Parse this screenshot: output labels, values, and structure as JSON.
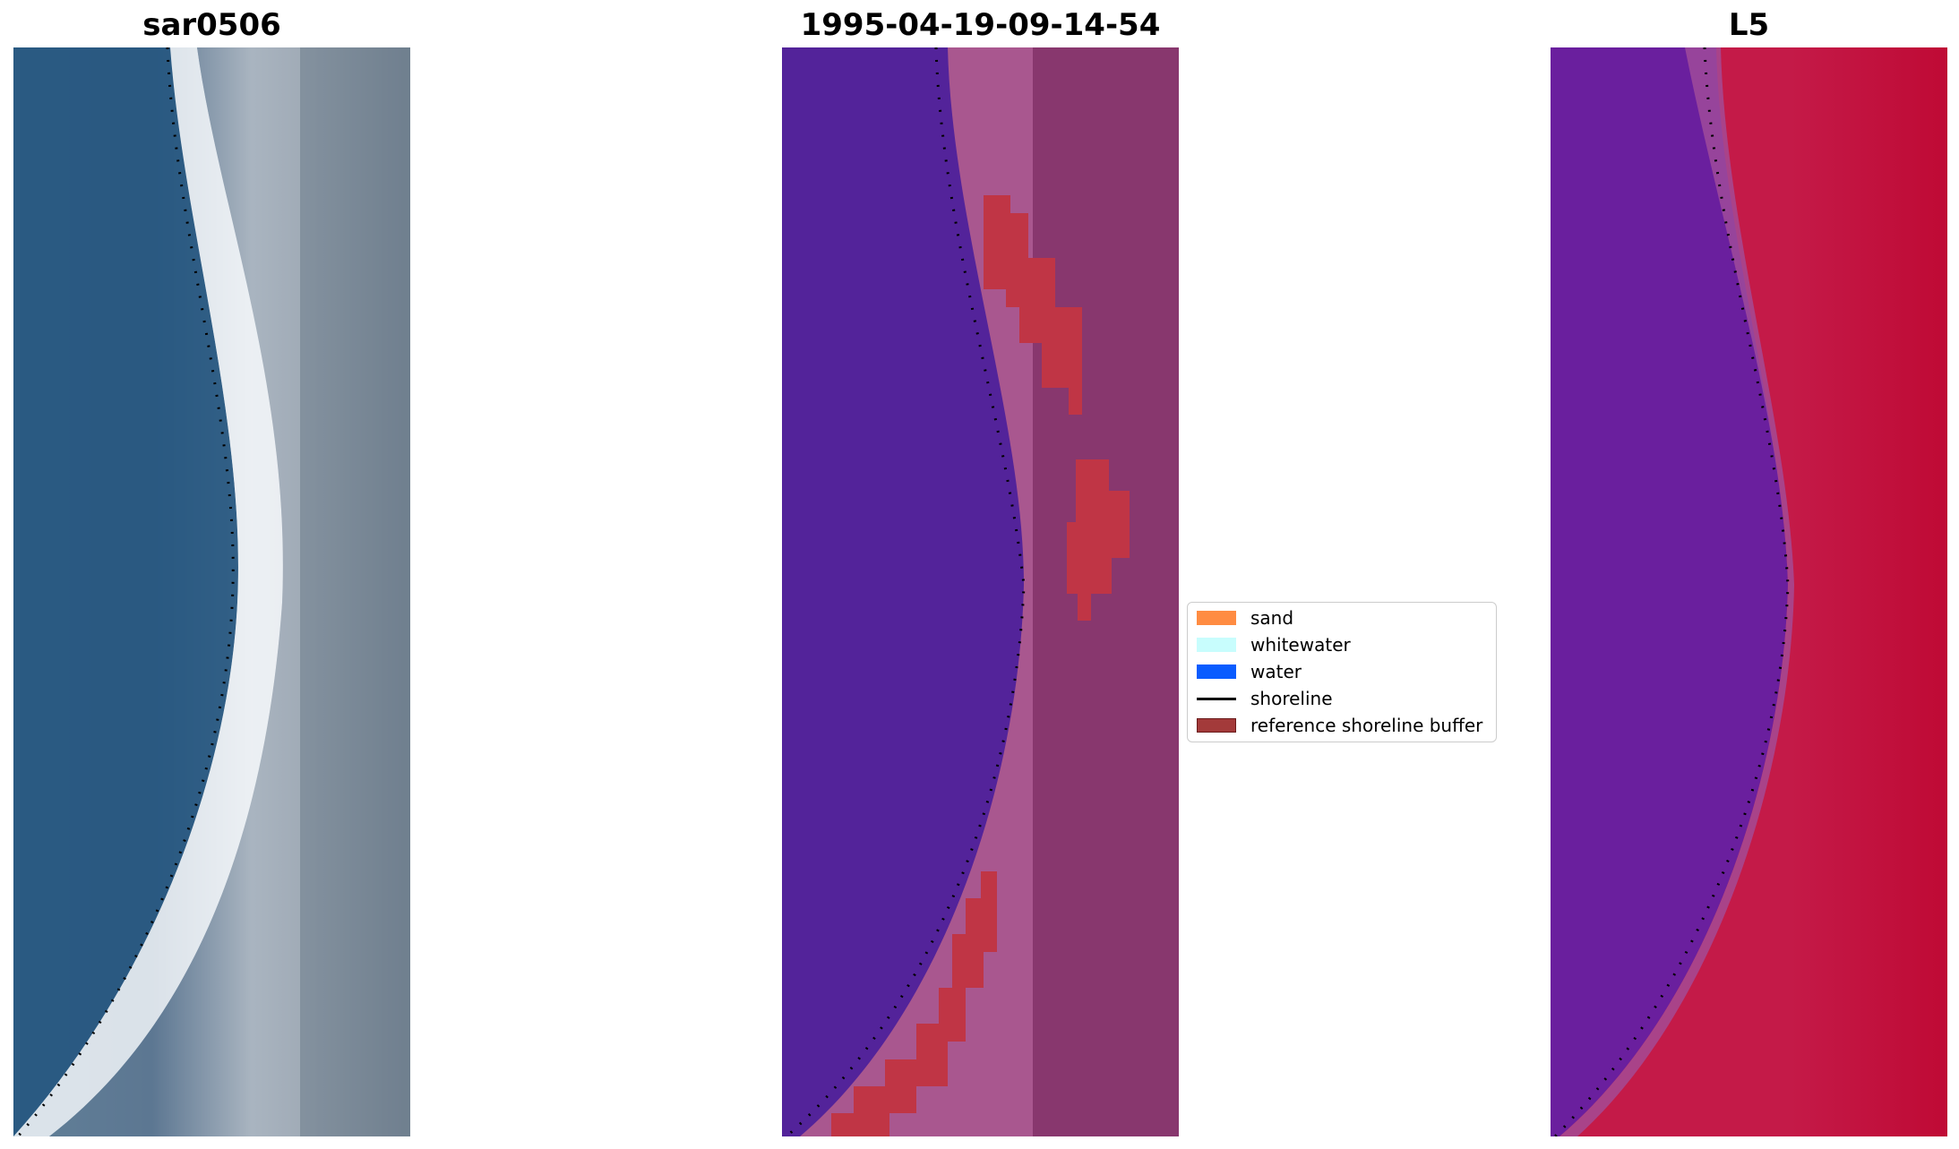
{
  "panels": [
    {
      "title": "sar0506"
    },
    {
      "title": "1995-04-19-09-14-54"
    },
    {
      "title": "L5"
    }
  ],
  "legend": {
    "items": [
      {
        "label": "sand",
        "color": "#ff8c42",
        "kind": "patch"
      },
      {
        "label": "whitewater",
        "color": "#c8fdfd",
        "kind": "patch"
      },
      {
        "label": "water",
        "color": "#0a5cff",
        "kind": "patch"
      },
      {
        "label": "shoreline",
        "color": "#000000",
        "kind": "line"
      },
      {
        "label": "reference shoreline buffer",
        "color": "#a33a3a",
        "kind": "patch-edge"
      }
    ]
  },
  "colors": {
    "water_rgb": "#2c5f86",
    "surf_white": "#f2f4f6",
    "land_gray": "#6f7f8f",
    "classified_water": "#53239a",
    "classified_land": "#a9578f",
    "buffer_red": "#c03545",
    "index_water": "#6a1f9e",
    "index_land": "#c0103a"
  }
}
